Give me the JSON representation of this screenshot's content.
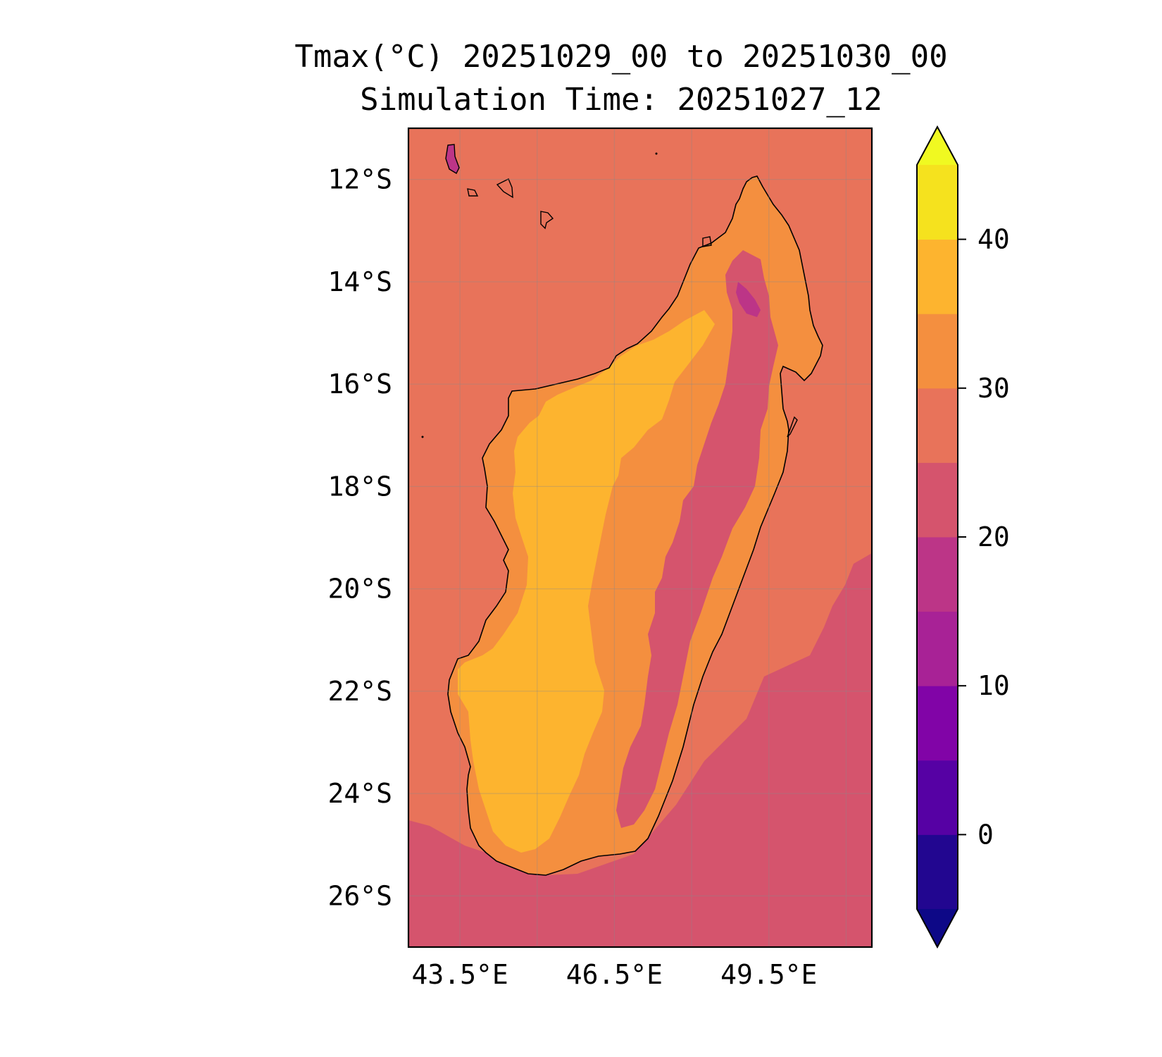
{
  "title_line1": "Tmax(°C) 20251029_00 to 20251030_00",
  "title_line2": "Simulation Time: 20251027_12",
  "map": {
    "lon_range": [
      42.5,
      51.5
    ],
    "lat_range": [
      -27,
      -11
    ],
    "lat_ticks": [
      {
        "value": -12,
        "label": "12°S"
      },
      {
        "value": -14,
        "label": "14°S"
      },
      {
        "value": -16,
        "label": "16°S"
      },
      {
        "value": -18,
        "label": "18°S"
      },
      {
        "value": -20,
        "label": "20°S"
      },
      {
        "value": -22,
        "label": "22°S"
      },
      {
        "value": -24,
        "label": "24°S"
      },
      {
        "value": -26,
        "label": "26°S"
      }
    ],
    "lon_ticks": [
      {
        "value": 43.5,
        "label": "43.5°E"
      },
      {
        "value": 46.5,
        "label": "46.5°E"
      },
      {
        "value": 49.5,
        "label": "49.5°E"
      }
    ],
    "grid_lons": [
      43.5,
      45,
      46.5,
      48,
      49.5,
      51
    ],
    "grid_lats": [
      -12,
      -14,
      -16,
      -18,
      -20,
      -22,
      -24,
      -26
    ],
    "ocean_north_color": "#e8735a",
    "ocean_south_color": "#d5546d",
    "island_outer_color": "#f48f3f",
    "island_inner_color": "#fdb42f",
    "highland_color": "#d5546d",
    "highland_peak_color": "#bc3587",
    "coastline_color": "#000000"
  },
  "colorbar": {
    "min": -5,
    "max": 45,
    "levels": [
      -5,
      0,
      5,
      10,
      15,
      20,
      25,
      30,
      35,
      40,
      45
    ],
    "colors": [
      "#220690",
      "#5601a4",
      "#8104a7",
      "#a82296",
      "#bc3587",
      "#d5546d",
      "#e8735a",
      "#f48f3f",
      "#fdb42f",
      "#f5e21e"
    ],
    "under_color": "#0d0887",
    "over_color": "#f0f921",
    "ticks": [
      {
        "value": 0,
        "label": "0"
      },
      {
        "value": 10,
        "label": "10"
      },
      {
        "value": 20,
        "label": "20"
      },
      {
        "value": 30,
        "label": "30"
      },
      {
        "value": 40,
        "label": "40"
      }
    ]
  }
}
